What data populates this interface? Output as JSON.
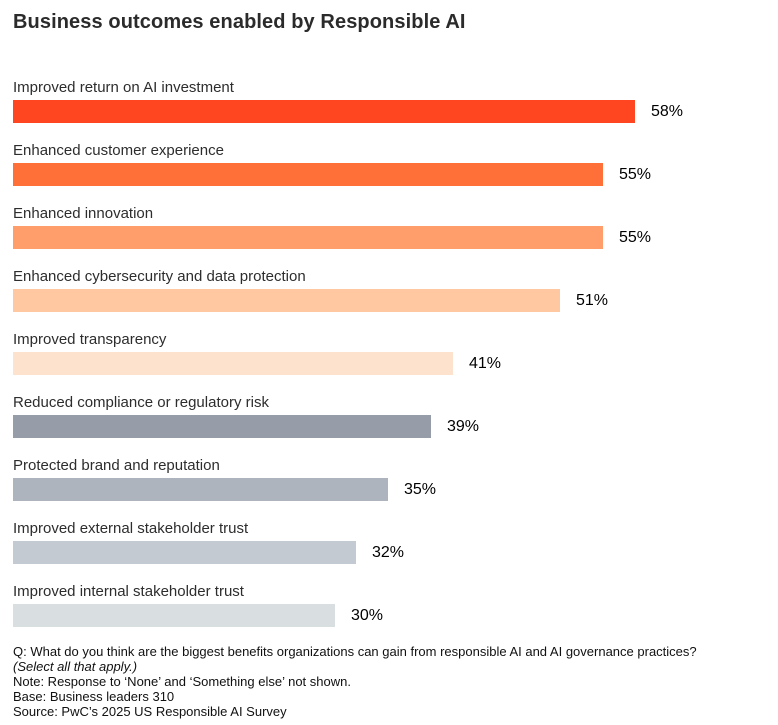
{
  "chart_data": {
    "type": "bar",
    "orientation": "horizontal",
    "title": "Business outcomes enabled by Responsible AI",
    "categories": [
      "Improved return on AI investment",
      "Enhanced customer experience",
      "Enhanced innovation",
      "Enhanced cybersecurity and data protection",
      "Improved transparency",
      "Reduced compliance or regulatory risk",
      "Protected brand and reputation",
      "Improved external stakeholder trust",
      "Improved internal stakeholder trust"
    ],
    "values": [
      58,
      55,
      55,
      51,
      41,
      39,
      35,
      32,
      30
    ],
    "value_labels": [
      "58%",
      "55%",
      "55%",
      "51%",
      "41%",
      "39%",
      "35%",
      "32%",
      "30%"
    ],
    "bar_colors": [
      "#FF4621",
      "#FF7039",
      "#FF9D6B",
      "#FFC8A1",
      "#FDE3CE",
      "#969DA9",
      "#AEB4BE",
      "#C4CAD1",
      "#D9DFE1"
    ],
    "unit": "%",
    "xlim": [
      0,
      100
    ],
    "grid": false,
    "axes_shown": false,
    "value_label_position": "right-of-bar",
    "legend": "none"
  },
  "footnotes": {
    "question": "Q: What do you think are the biggest benefits organizations can gain from responsible AI and AI governance practices?",
    "select_note": "(Select all that apply.)",
    "note": "Note: Response to ‘None’ and ‘Something else’ not shown.",
    "base": "Base: Business leaders 310",
    "source": "Source: PwC’s 2025 US Responsible AI Survey"
  }
}
